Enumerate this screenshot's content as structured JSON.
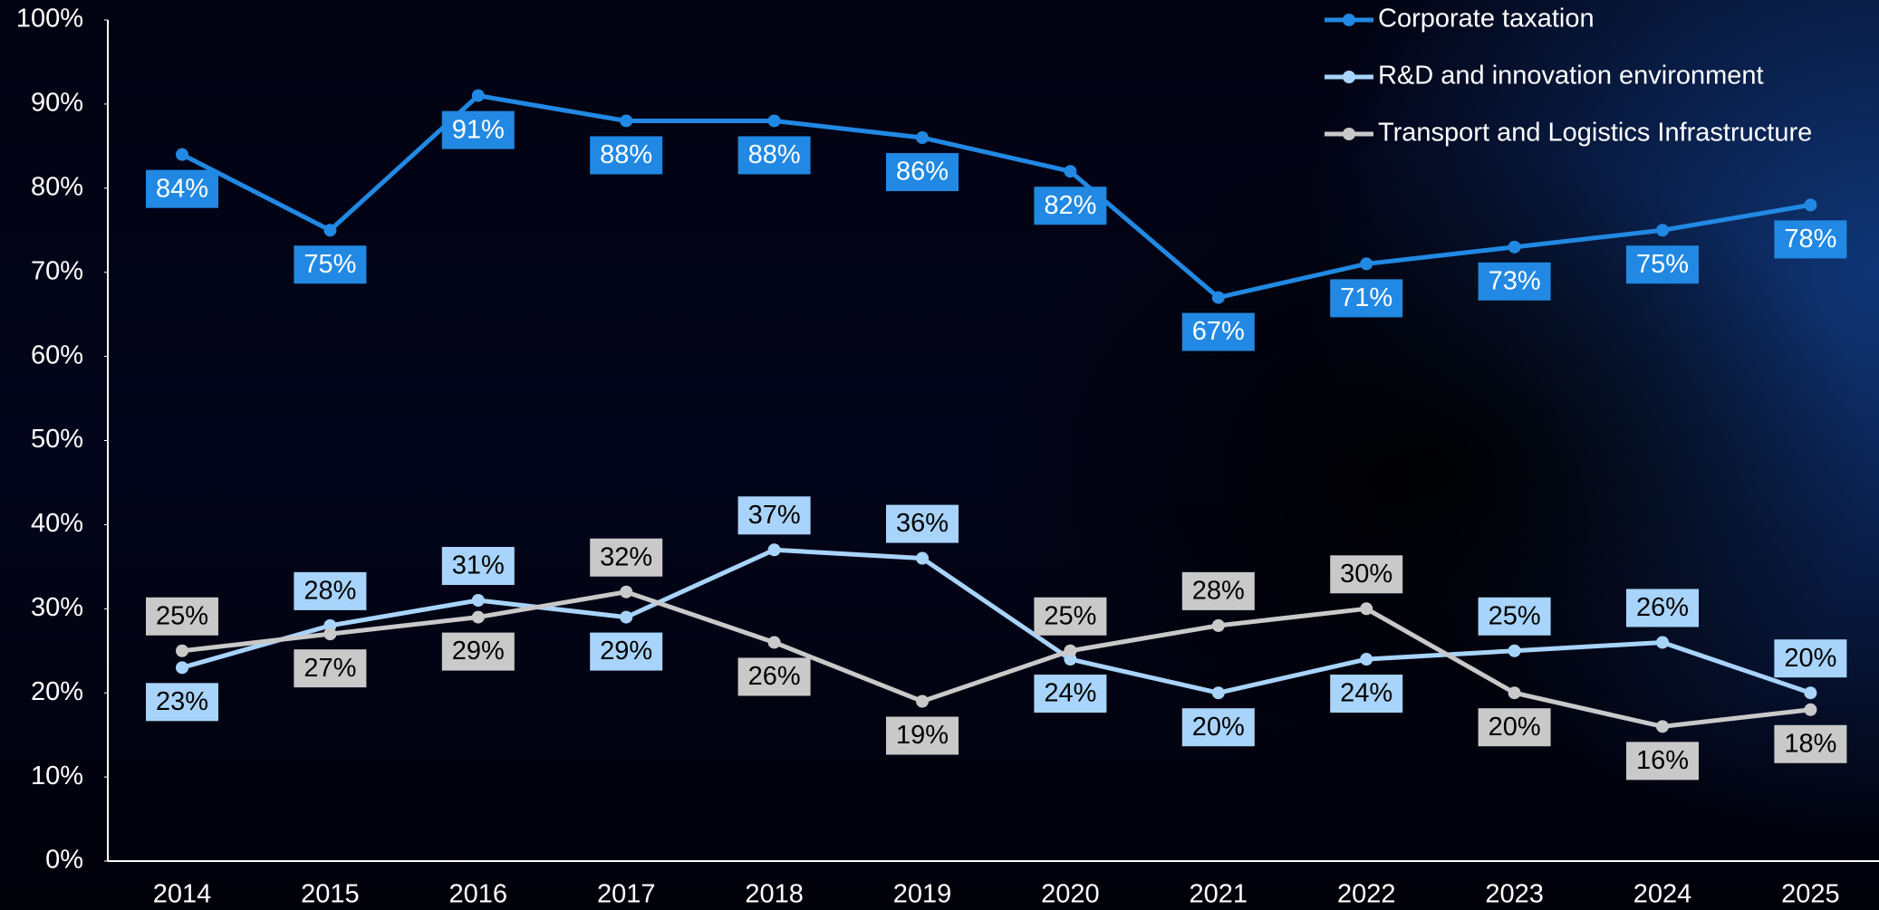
{
  "chart_data": {
    "type": "line",
    "categories": [
      "2014",
      "2015",
      "2016",
      "2017",
      "2018",
      "2019",
      "2020",
      "2021",
      "2022",
      "2023",
      "2024",
      "2025"
    ],
    "series": [
      {
        "name": "Corporate taxation",
        "color": "#2189e3",
        "values": [
          84,
          75,
          91,
          88,
          88,
          86,
          82,
          67,
          71,
          73,
          75,
          78
        ],
        "value_labels": [
          "84%",
          "75%",
          "91%",
          "88%",
          "88%",
          "86%",
          "82%",
          "67%",
          "71%",
          "73%",
          "75%",
          "78%"
        ]
      },
      {
        "name": "R&D and innovation environment",
        "color": "#a8d4fb",
        "values": [
          23,
          28,
          31,
          29,
          37,
          36,
          24,
          20,
          24,
          25,
          26,
          20
        ],
        "value_labels": [
          "23%",
          "28%",
          "31%",
          "29%",
          "37%",
          "36%",
          "24%",
          "20%",
          "24%",
          "25%",
          "26%",
          "20%"
        ]
      },
      {
        "name": "Transport and Logistics Infrastructure",
        "color": "#c9c9c9",
        "values": [
          25,
          27,
          29,
          32,
          26,
          19,
          25,
          28,
          30,
          20,
          16,
          18
        ],
        "value_labels": [
          "25%",
          "27%",
          "29%",
          "32%",
          "26%",
          "19%",
          "25%",
          "28%",
          "30%",
          "20%",
          "16%",
          "18%"
        ]
      }
    ],
    "ylim": [
      0,
      100
    ],
    "yticks": [
      {
        "value": 0,
        "label": "0%"
      },
      {
        "value": 10,
        "label": "10%"
      },
      {
        "value": 20,
        "label": "20%"
      },
      {
        "value": 30,
        "label": "30%"
      },
      {
        "value": 40,
        "label": "40%"
      },
      {
        "value": 50,
        "label": "50%"
      },
      {
        "value": 60,
        "label": "60%"
      },
      {
        "value": 70,
        "label": "70%"
      },
      {
        "value": 80,
        "label": "80%"
      },
      {
        "value": 90,
        "label": "90%"
      },
      {
        "value": 100,
        "label": "100%"
      }
    ],
    "grid": false,
    "legend": "top-right"
  }
}
